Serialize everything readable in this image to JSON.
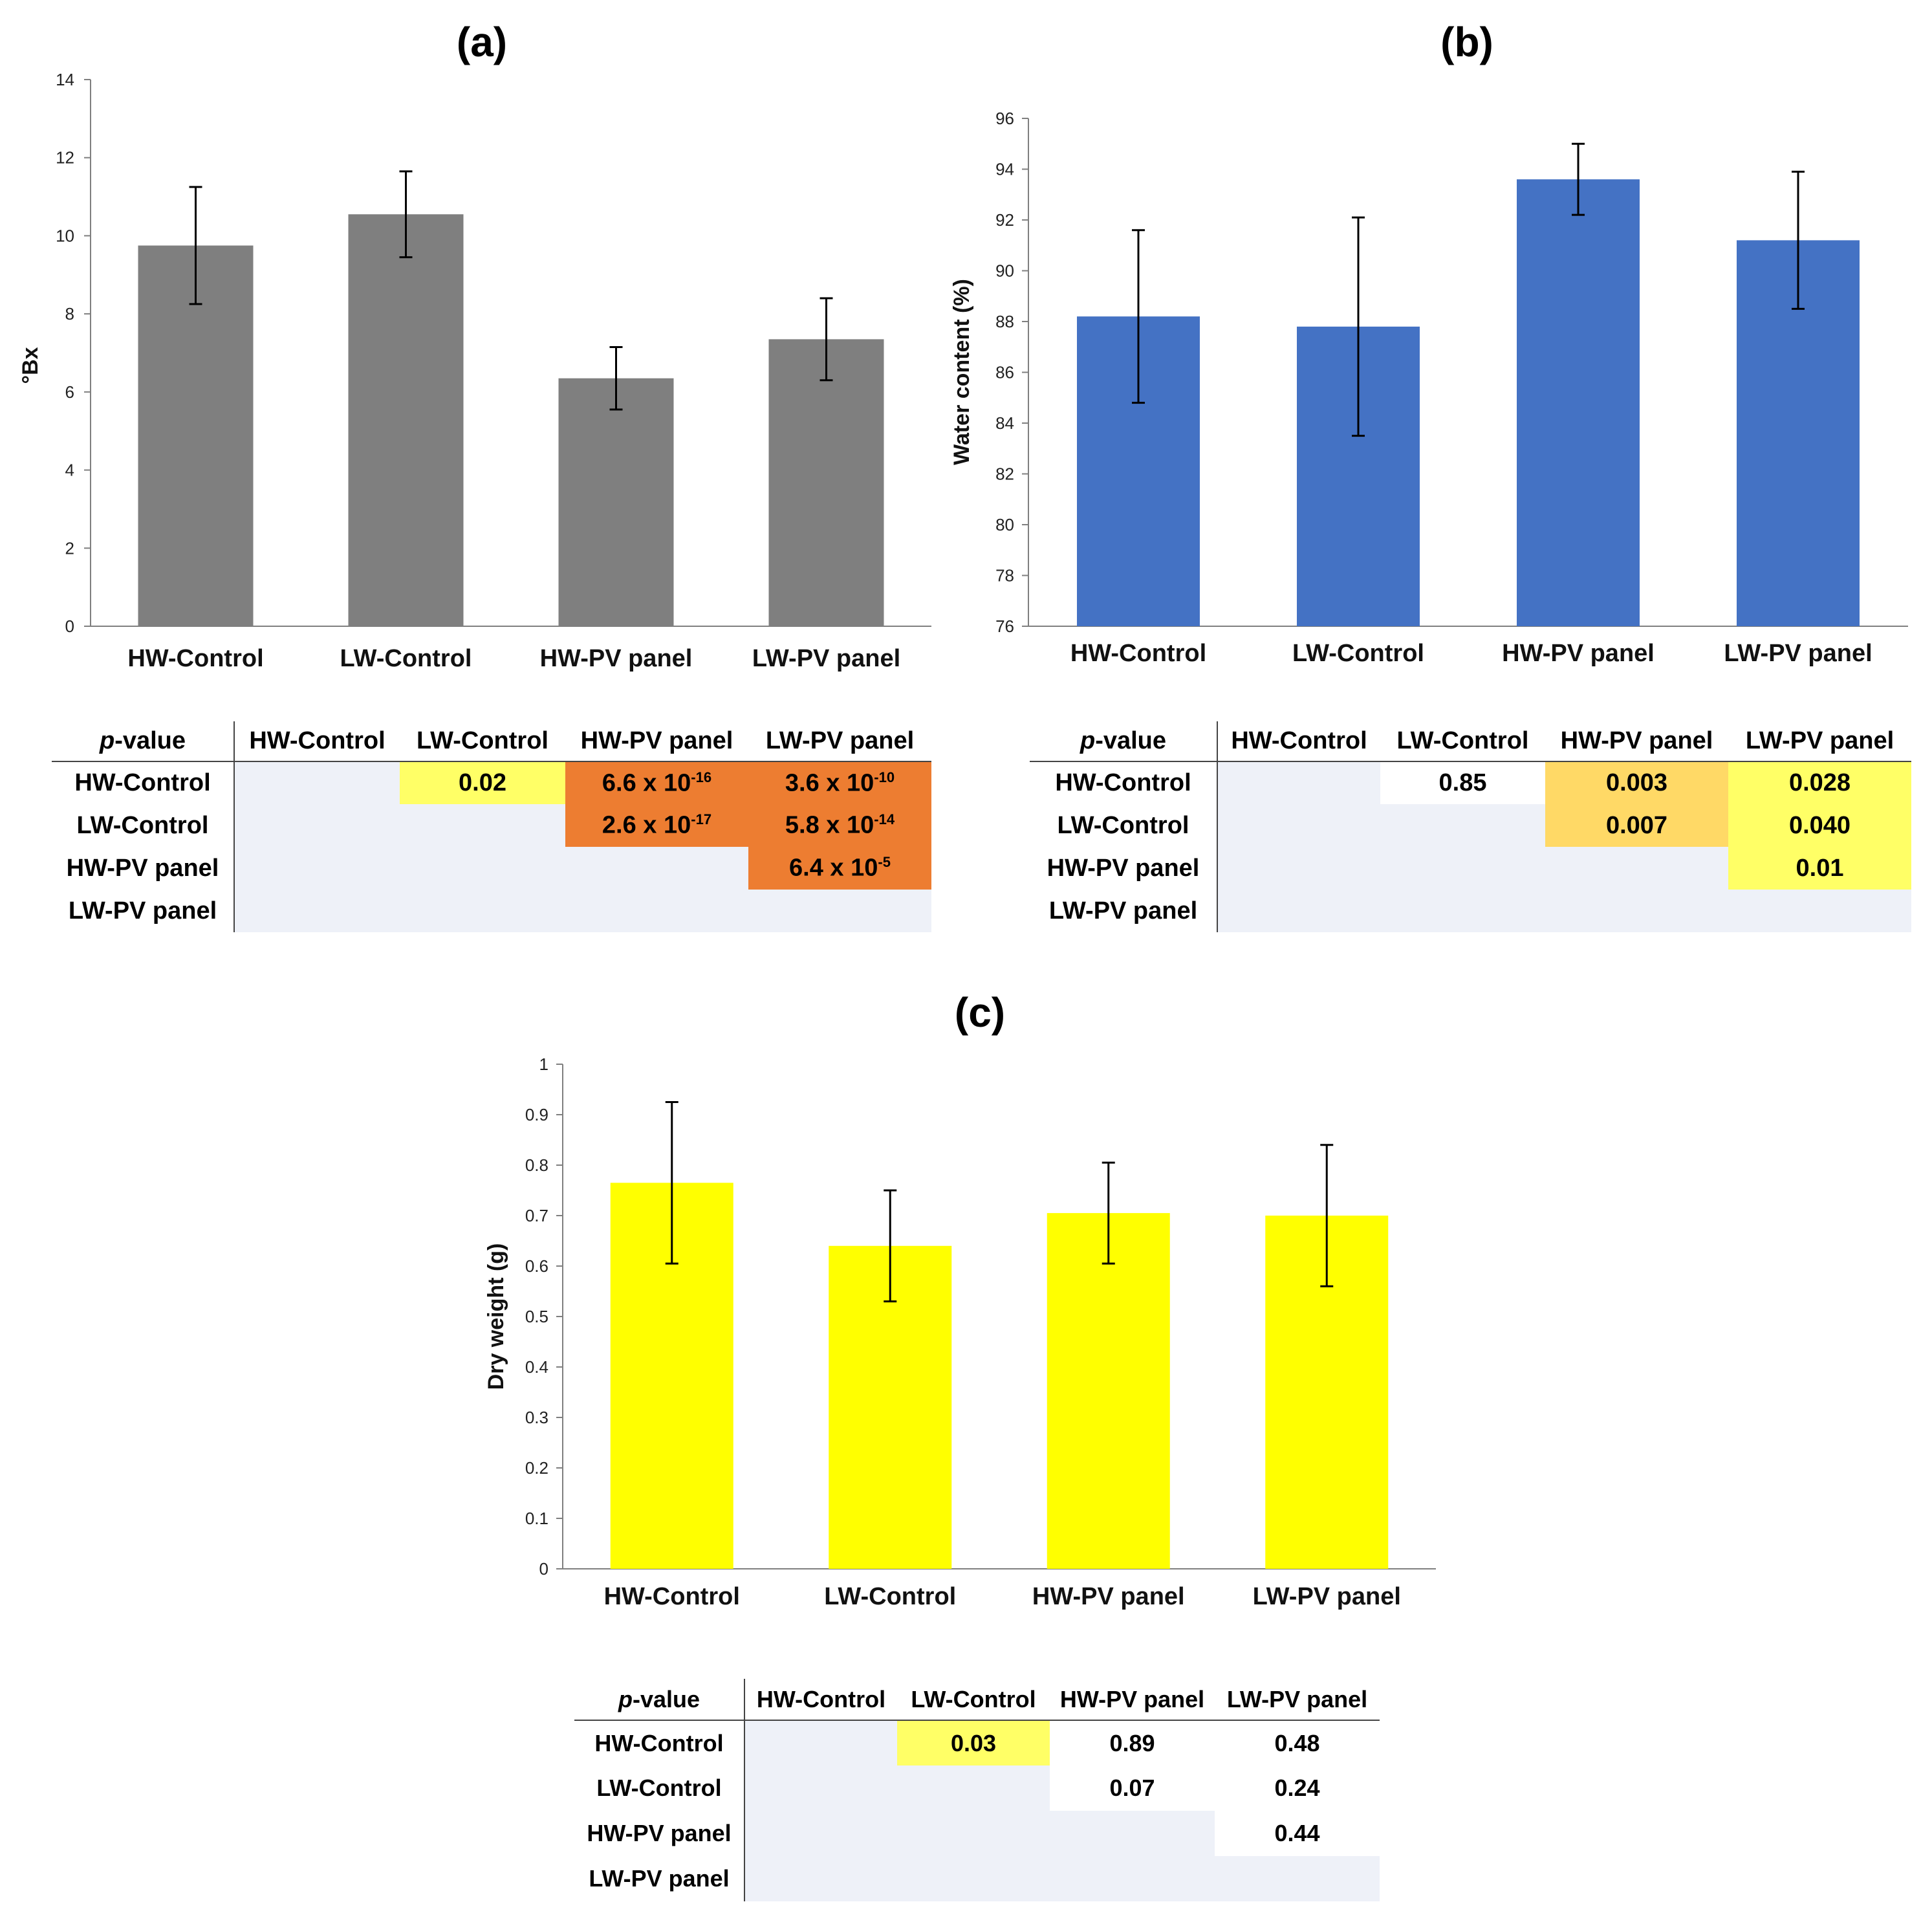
{
  "colors": {
    "bar_a": "#7f7f7f",
    "bar_b": "#4472c4",
    "bar_c": "#ffff00",
    "axis": "#7f7f7f",
    "errorbar": "#000000",
    "table_bg": "#eef1f8",
    "sig_yellow": "#ffff66",
    "sig_orange": "#ed7d31",
    "sig_lightorange": "#ffd966"
  },
  "chart_data": [
    {
      "panel": "(a)",
      "type": "bar",
      "title": "(a)",
      "categories": [
        "HW-Control",
        "LW-Control",
        "HW-PV panel",
        "LW-PV panel"
      ],
      "values": [
        9.75,
        10.55,
        6.35,
        7.35
      ],
      "errors": [
        1.5,
        1.1,
        0.8,
        1.05
      ],
      "ylabel": "°Bx",
      "xlabel": "",
      "ylim": [
        0,
        14
      ],
      "yticks": [
        "0",
        "2",
        "4",
        "6",
        "8",
        "10",
        "12",
        "14"
      ],
      "grid": false
    },
    {
      "panel": "(b)",
      "type": "bar",
      "title": "(b)",
      "categories": [
        "HW-Control",
        "LW-Control",
        "HW-PV panel",
        "LW-PV panel"
      ],
      "values": [
        88.2,
        87.8,
        93.6,
        91.2
      ],
      "errors": [
        3.4,
        4.3,
        1.4,
        2.7
      ],
      "ylabel": "Water content (%)",
      "xlabel": "",
      "ylim": [
        76,
        96
      ],
      "yticks": [
        "76",
        "78",
        "80",
        "82",
        "84",
        "86",
        "88",
        "90",
        "92",
        "94",
        "96"
      ],
      "grid": false
    },
    {
      "panel": "(c)",
      "type": "bar",
      "title": "(c)",
      "categories": [
        "HW-Control",
        "LW-Control",
        "HW-PV panel",
        "LW-PV panel"
      ],
      "values": [
        0.765,
        0.64,
        0.705,
        0.7
      ],
      "errors": [
        0.16,
        0.11,
        0.1,
        0.14
      ],
      "ylabel": "Dry weight (g)",
      "xlabel": "",
      "ylim": [
        0,
        1
      ],
      "yticks": [
        "0",
        "0.1",
        "0.2",
        "0.3",
        "0.4",
        "0.5",
        "0.6",
        "0.7",
        "0.8",
        "0.9",
        "1"
      ],
      "grid": false
    }
  ],
  "tables": {
    "corner_italic": "p",
    "corner_rest": "-value",
    "columns": [
      "HW-Control",
      "LW-Control",
      "HW-PV panel",
      "LW-PV panel"
    ],
    "rows": [
      "HW-Control",
      "LW-Control",
      "HW-PV panel",
      "LW-PV panel"
    ],
    "a": {
      "r0c1": "0.02",
      "r0c2": {
        "base": "6.6 x 10",
        "exp": "-16"
      },
      "r0c3": {
        "base": "3.6 x 10",
        "exp": "-10"
      },
      "r1c2": {
        "base": "2.6 x 10",
        "exp": "-17"
      },
      "r1c3": {
        "base": "5.8 x 10",
        "exp": "-14"
      },
      "r2c3": {
        "base": "6.4 x 10",
        "exp": "-5"
      }
    },
    "b": {
      "r0c1": "0.85",
      "r0c2": "0.003",
      "r0c3": "0.028",
      "r1c2": "0.007",
      "r1c3": "0.040",
      "r2c3": "0.01"
    },
    "c": {
      "r0c1": "0.03",
      "r0c2": "0.89",
      "r0c3": "0.48",
      "r1c2": "0.07",
      "r1c3": "0.24",
      "r2c3": "0.44"
    }
  }
}
